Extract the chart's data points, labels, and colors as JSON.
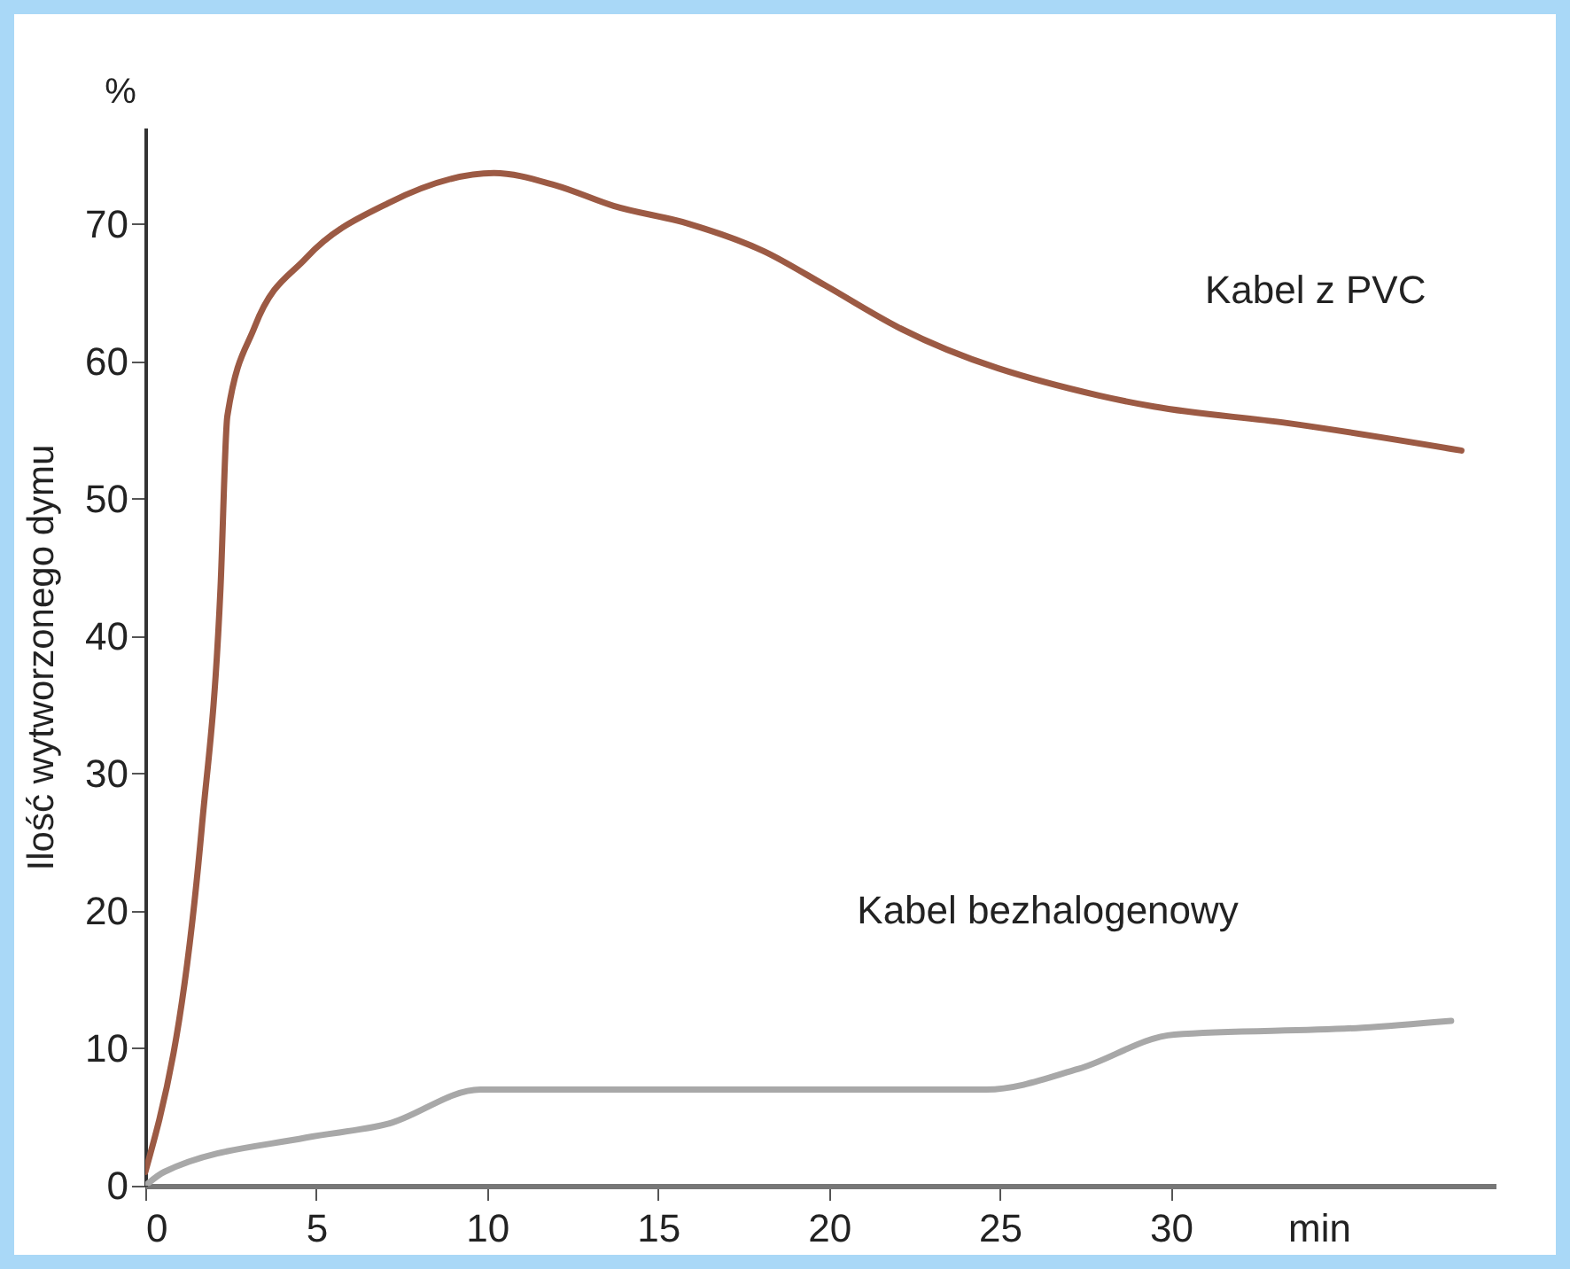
{
  "chart_data": {
    "type": "line",
    "ylabel": "Ilość wytworzonego dymu",
    "xlabel": "min",
    "annotations": [
      "%"
    ],
    "xlim": [
      0,
      39.5
    ],
    "ylim": [
      0,
      77
    ],
    "xticks": [
      0,
      5,
      10,
      15,
      20,
      25,
      30
    ],
    "yticks": [
      0,
      10,
      20,
      30,
      40,
      50,
      60,
      70
    ],
    "grid": false,
    "series": [
      {
        "name": "Kabel z PVC",
        "color": "#9c5a44",
        "x": [
          0,
          1.65,
          2.2,
          2.4,
          3.2,
          4.7,
          7.1,
          10.2,
          12,
          13.7,
          15.9,
          18.1,
          19.9,
          22,
          27.9,
          29.5,
          33.4,
          38.5
        ],
        "values": [
          1,
          26,
          43.5,
          56,
          62.5,
          67.5,
          71.5,
          73.7,
          72.8,
          71.3,
          70,
          68,
          65.5,
          62.5,
          57.5,
          56.7,
          55.5,
          53.5
        ]
      },
      {
        "name": "Kabel bezhalogenowy",
        "color": "#a8a8a8",
        "x": [
          0,
          0.55,
          4.7,
          7.1,
          9.8,
          12,
          15.5,
          18,
          24.6,
          27.3,
          30.1,
          35.6,
          38.2
        ],
        "values": [
          0,
          1,
          3.5,
          4.5,
          7,
          7,
          7,
          7,
          7,
          8.5,
          11,
          11.5,
          12
        ]
      }
    ]
  }
}
